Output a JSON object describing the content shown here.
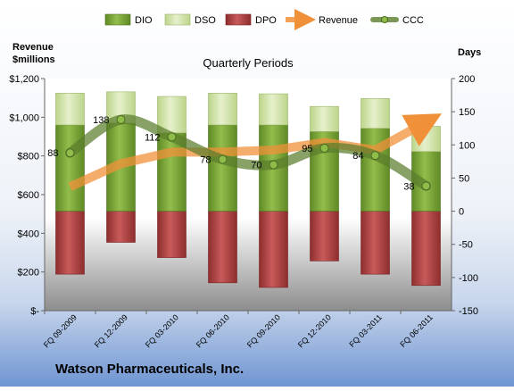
{
  "chart_data": {
    "type": "bar",
    "categories": [
      "FQ 09-2009",
      "FQ 12-2009",
      "FQ 03-2010",
      "FQ 06-2010",
      "FQ 09-2010",
      "FQ 12-2010",
      "FQ 03-2011",
      "FQ 06-2011"
    ],
    "title": "Quarterly Periods",
    "left_axis_label_line1": "Revenue",
    "left_axis_label_line2": "$millions",
    "right_axis_label": "Days",
    "left_ylim": [
      0,
      1200
    ],
    "right_ylim": [
      -150,
      200
    ],
    "left_ticks": [
      "$-",
      "$200",
      "$400",
      "$600",
      "$800",
      "$1,000",
      "$1,200"
    ],
    "left_tick_values": [
      0,
      200,
      400,
      600,
      800,
      1000,
      1200
    ],
    "right_tick_values": [
      -150,
      -100,
      -50,
      0,
      50,
      100,
      150,
      200
    ],
    "right_tick_labels": [
      "-150",
      "-100",
      "-50",
      "0",
      "50",
      "100",
      "150",
      "200"
    ],
    "legend_position": "top",
    "grid": false,
    "series": [
      {
        "name": "DIO",
        "axis": "days",
        "values": [
          130,
          133,
          118,
          130,
          130,
          120,
          125,
          90
        ],
        "color": "#7fa83a"
      },
      {
        "name": "DSO",
        "axis": "days",
        "values": [
          48,
          47,
          55,
          48,
          47,
          38,
          45,
          38
        ],
        "color": "#d7e7b0"
      },
      {
        "name": "DPO",
        "axis": "days",
        "values": [
          -95,
          -47,
          -70,
          -108,
          -115,
          -75,
          -95,
          -112
        ],
        "color": "#b94646"
      },
      {
        "name": "Revenue",
        "axis": "revenue",
        "values": [
          640,
          760,
          820,
          820,
          830,
          870,
          830,
          975
        ],
        "color": "#f0913a"
      },
      {
        "name": "CCC",
        "axis": "days",
        "values": [
          88,
          138,
          112,
          78,
          70,
          95,
          84,
          38
        ],
        "color": "#5a7d2c"
      }
    ],
    "ccc_labels": [
      "88",
      "138",
      "112",
      "78",
      "70",
      "95",
      "84",
      "38"
    ]
  },
  "footer": {
    "company": "Watson Pharmaceuticals, Inc."
  }
}
